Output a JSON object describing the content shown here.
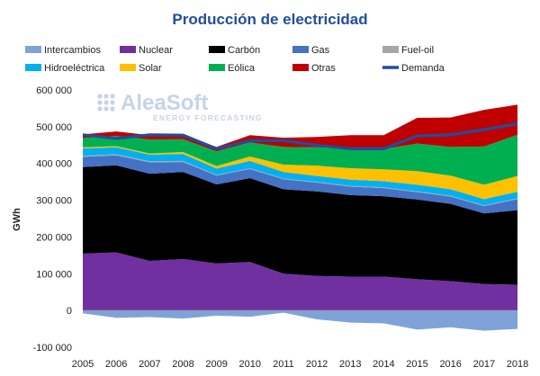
{
  "chart_data": {
    "type": "area",
    "title": "Producción de electricidad",
    "xlabel": "",
    "ylabel": "GWh",
    "x": [
      "2005",
      "2006",
      "2007",
      "2008",
      "2009",
      "2010",
      "2011",
      "2012",
      "2013",
      "2014",
      "2015",
      "2016",
      "2017",
      "2018"
    ],
    "ylim": [
      -100000,
      600000
    ],
    "yticks": [
      600000,
      500000,
      400000,
      300000,
      200000,
      100000,
      0,
      -100000
    ],
    "ytick_labels": [
      "600 000",
      "500 000",
      "400 000",
      "300 000",
      "200 000",
      "100 000",
      "0",
      "-100 000"
    ],
    "grid": false,
    "legend_position": "top",
    "series": [
      {
        "name": "Intercambios",
        "color": "#7fa3d8",
        "values": [
          -8000,
          -20000,
          -18000,
          -22000,
          -14000,
          -17000,
          -6000,
          -24000,
          -33000,
          -35000,
          -52000,
          -46000,
          -55000,
          -50000
        ]
      },
      {
        "name": "Nuclear",
        "color": "#7030a0",
        "values": [
          155000,
          158000,
          135000,
          140000,
          128000,
          132000,
          100000,
          94000,
          92000,
          92000,
          85000,
          80000,
          72000,
          70000
        ]
      },
      {
        "name": "Carbón",
        "color": "#000000",
        "values": [
          235000,
          237000,
          237000,
          237000,
          215000,
          228000,
          230000,
          230000,
          222000,
          219000,
          217000,
          210000,
          192000,
          203000
        ]
      },
      {
        "name": "Gas",
        "color": "#4472c4",
        "values": [
          28000,
          27000,
          31000,
          27000,
          24000,
          25000,
          27000,
          24000,
          23000,
          22000,
          20000,
          20000,
          20000,
          30000
        ]
      },
      {
        "name": "Fuel-oil",
        "color": "#a6a6a6",
        "values": [
          3000,
          3000,
          3000,
          3000,
          2000,
          2000,
          2000,
          2000,
          2000,
          2000,
          2000,
          2000,
          2000,
          2000
        ]
      },
      {
        "name": "Hidroeléctrica",
        "color": "#00b0f0",
        "values": [
          20000,
          19000,
          18000,
          19000,
          17000,
          20000,
          18000,
          16000,
          17000,
          17000,
          18000,
          18000,
          17000,
          18000
        ]
      },
      {
        "name": "Solar",
        "color": "#ffc000",
        "values": [
          3000,
          3000,
          3000,
          5000,
          7000,
          12000,
          20000,
          28000,
          31000,
          32000,
          37000,
          37000,
          39000,
          43000
        ]
      },
      {
        "name": "Eólica",
        "color": "#00b050",
        "values": [
          25000,
          28000,
          38000,
          35000,
          40000,
          38000,
          48000,
          50000,
          53000,
          55000,
          75000,
          78000,
          104000,
          112000
        ]
      },
      {
        "name": "Otras",
        "color": "#c00000",
        "values": [
          10000,
          12000,
          12000,
          12000,
          12000,
          20000,
          25000,
          28000,
          37000,
          38000,
          70000,
          80000,
          100000,
          82000
        ]
      }
    ],
    "line_series": {
      "name": "Demanda",
      "color": "#1f4e9e",
      "values": [
        478000,
        468000,
        478000,
        477000,
        440000,
        462000,
        462000,
        450000,
        440000,
        440000,
        475000,
        478000,
        492000,
        508000
      ]
    },
    "watermark": {
      "main": "AleaSoft",
      "sub": "ENERGY FORECASTING"
    }
  }
}
